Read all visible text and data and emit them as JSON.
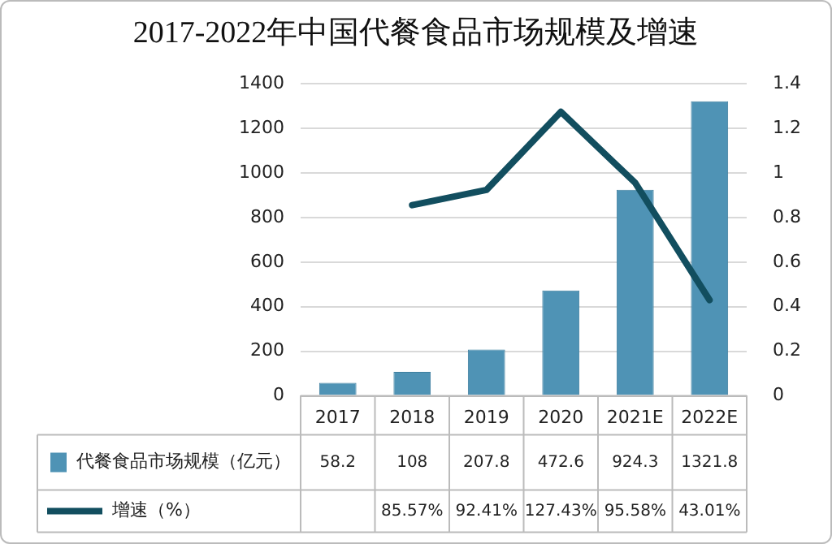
{
  "chart_data": {
    "type": "bar",
    "title": "2017-2022年中国代餐食品市场规模及增速",
    "categories": [
      "2017",
      "2018",
      "2019",
      "2020",
      "2021E",
      "2022E"
    ],
    "series": [
      {
        "name": "代餐食品市场规模（亿元）",
        "color": "#4f93b5",
        "values": [
          58.2,
          108,
          207.8,
          472.6,
          924.3,
          1321.8
        ],
        "value_labels": [
          "58.2",
          "108",
          "207.8",
          "472.6",
          "924.3",
          "1321.8"
        ]
      },
      {
        "name": "增速（%）",
        "type": "line",
        "axis": "y2",
        "color": "#124e5f",
        "values": [
          null,
          0.8557,
          0.9241,
          1.2743,
          0.9558,
          0.4301
        ],
        "value_labels": [
          null,
          "85.57%",
          "92.41%",
          "127.43%",
          "95.58%",
          "43.01%"
        ]
      }
    ],
    "ylim": [
      0,
      1400
    ],
    "yticks": [
      0,
      200,
      400,
      600,
      800,
      1000,
      1200,
      1400
    ],
    "y2lim": [
      0,
      1.4
    ],
    "y2ticks": [
      0,
      0.2,
      0.4,
      0.6,
      0.8,
      1,
      1.2,
      1.4
    ],
    "legend": "bottom",
    "grid": "y",
    "marker": "none",
    "line_style": "solid"
  }
}
